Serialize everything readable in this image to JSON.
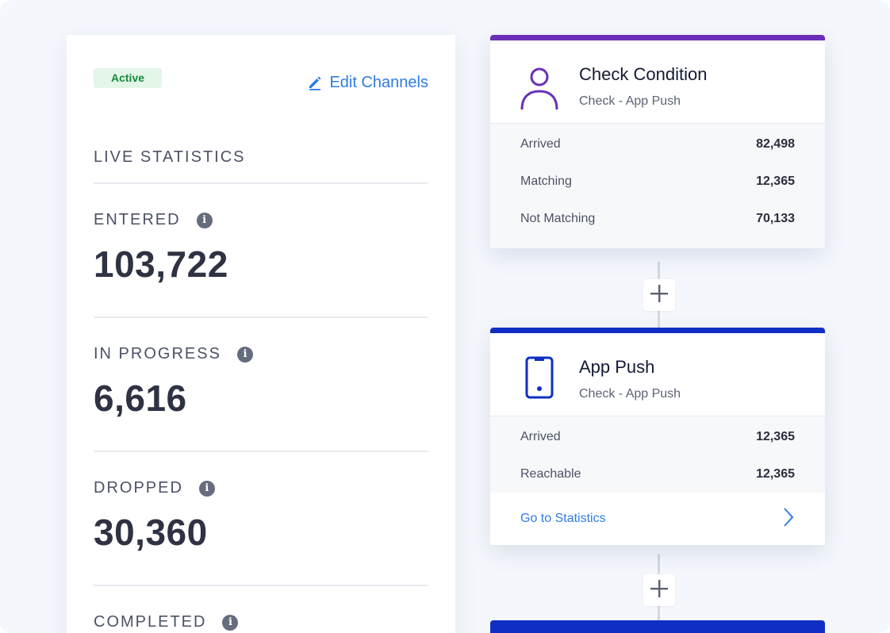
{
  "stats_panel": {
    "status_badge": "Active",
    "edit_channels_label": "Edit Channels",
    "section_title": "LIVE STATISTICS",
    "stats": [
      {
        "label": "ENTERED",
        "value": "103,722"
      },
      {
        "label": "IN PROGRESS",
        "value": "6,616"
      },
      {
        "label": "DROPPED",
        "value": "30,360"
      },
      {
        "label": "COMPLETED",
        "value": ""
      }
    ],
    "info_glyph": "i"
  },
  "nodes": [
    {
      "title": "Check Condition",
      "subtitle": "Check - App Push",
      "accent_color": "#6a2fb8",
      "icon": "person-icon",
      "rows": [
        {
          "label": "Arrived",
          "value": "82,498"
        },
        {
          "label": "Matching",
          "value": "12,365"
        },
        {
          "label": "Not Matching",
          "value": "70,133"
        }
      ]
    },
    {
      "title": "App Push",
      "subtitle": "Check - App Push",
      "accent_color": "#0f2fc4",
      "icon": "mobile-phone-icon",
      "rows": [
        {
          "label": "Arrived",
          "value": "12,365"
        },
        {
          "label": "Reachable",
          "value": "12,365"
        }
      ],
      "footer_link": "Go to Statistics"
    }
  ],
  "colors": {
    "link": "#2f7be6",
    "badge_bg": "#e3f6e8",
    "badge_text": "#178a3c"
  }
}
